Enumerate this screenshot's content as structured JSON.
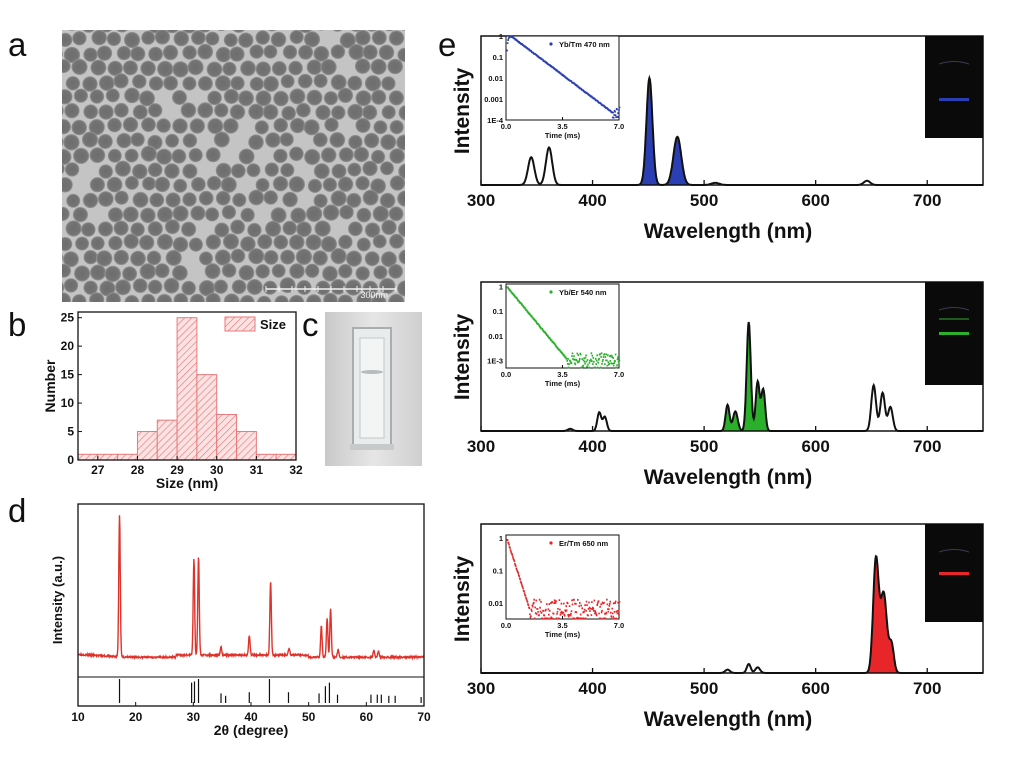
{
  "panels": {
    "a": {
      "label": "a",
      "scale_bar": "300nm"
    },
    "b": {
      "label": "b"
    },
    "c": {
      "label": "c"
    },
    "d": {
      "label": "d"
    },
    "e": {
      "label": "e"
    }
  },
  "colors": {
    "blue": "#2b3fb5",
    "green": "#2bb02b",
    "red": "#e8262a",
    "xrd": "#e0322a",
    "hist": "#e87878"
  },
  "chart_data": [
    {
      "id": "b",
      "type": "bar",
      "xlabel": "Size (nm)",
      "ylabel": "Number",
      "legend": "Size",
      "legend_position": "top-right",
      "bin_edges": [
        26.5,
        27,
        27.5,
        28,
        28.5,
        29,
        29.5,
        30,
        30.5,
        31,
        31.5,
        32
      ],
      "values": [
        1,
        1,
        1,
        5,
        7,
        25,
        15,
        8,
        5,
        1,
        1
      ],
      "xlim": [
        26.5,
        32
      ],
      "ylim": [
        0,
        26
      ],
      "xticks": [
        "27",
        "28",
        "29",
        "30",
        "31",
        "32"
      ],
      "xtick_values": [
        27,
        28,
        29,
        30,
        31,
        32
      ],
      "yticks": [
        "0",
        "5",
        "10",
        "15",
        "20",
        "25"
      ],
      "ytick_values": [
        0,
        5,
        10,
        15,
        20,
        25
      ]
    },
    {
      "id": "d",
      "type": "line",
      "xlabel": "2θ (degree)",
      "ylabel": "Intensity (a.u.)",
      "xlim": [
        10,
        70
      ],
      "xticks": [
        "10",
        "20",
        "30",
        "40",
        "50",
        "60",
        "70"
      ],
      "xtick_values": [
        10,
        20,
        30,
        40,
        50,
        60,
        70
      ],
      "baseline": 0.12,
      "peaks": [
        {
          "x": 17.2,
          "h": 1.0
        },
        {
          "x": 30.1,
          "h": 0.68
        },
        {
          "x": 30.9,
          "h": 0.69
        },
        {
          "x": 34.8,
          "h": 0.06
        },
        {
          "x": 39.7,
          "h": 0.14
        },
        {
          "x": 43.4,
          "h": 0.52
        },
        {
          "x": 46.6,
          "h": 0.05
        },
        {
          "x": 52.2,
          "h": 0.22
        },
        {
          "x": 53.2,
          "h": 0.27
        },
        {
          "x": 53.8,
          "h": 0.34
        },
        {
          "x": 55.1,
          "h": 0.05
        },
        {
          "x": 61.3,
          "h": 0.05
        },
        {
          "x": 62.1,
          "h": 0.04
        }
      ],
      "reference_lines": [
        {
          "x": 17.2,
          "h": 1.0
        },
        {
          "x": 29.7,
          "h": 0.85
        },
        {
          "x": 30.2,
          "h": 0.9
        },
        {
          "x": 30.9,
          "h": 1.0
        },
        {
          "x": 34.8,
          "h": 0.4
        },
        {
          "x": 35.6,
          "h": 0.3
        },
        {
          "x": 39.7,
          "h": 0.45
        },
        {
          "x": 43.2,
          "h": 1.0
        },
        {
          "x": 46.5,
          "h": 0.45
        },
        {
          "x": 51.8,
          "h": 0.4
        },
        {
          "x": 52.9,
          "h": 0.7
        },
        {
          "x": 53.6,
          "h": 0.85
        },
        {
          "x": 55.0,
          "h": 0.35
        },
        {
          "x": 60.8,
          "h": 0.35
        },
        {
          "x": 61.9,
          "h": 0.35
        },
        {
          "x": 62.6,
          "h": 0.35
        },
        {
          "x": 63.9,
          "h": 0.3
        },
        {
          "x": 65.0,
          "h": 0.3
        },
        {
          "x": 69.5,
          "h": 0.25
        }
      ]
    },
    {
      "id": "e1",
      "type": "area",
      "xlabel": "Wavelength (nm)",
      "ylabel": "Intensity",
      "xlim": [
        300,
        750
      ],
      "xticks": [
        "300",
        "400",
        "500",
        "600",
        "700"
      ],
      "xtick_values": [
        300,
        400,
        500,
        600,
        700
      ],
      "fill": "#2b3fb5",
      "fill_range": [
        440,
        500
      ],
      "peaks": [
        {
          "x": 345,
          "h": 0.26,
          "w": 4
        },
        {
          "x": 361,
          "h": 0.35,
          "w": 4
        },
        {
          "x": 451,
          "h": 1.0,
          "w": 3.8
        },
        {
          "x": 476,
          "h": 0.45,
          "w": 5
        },
        {
          "x": 510,
          "h": 0.02,
          "w": 5
        },
        {
          "x": 646,
          "h": 0.04,
          "w": 4
        }
      ],
      "inset": {
        "legend": "Yb/Tm 470 nm",
        "xlabel": "Time (ms)",
        "xticks": [
          "0.0",
          "3.5",
          "7.0"
        ],
        "yticks": [
          "1",
          "0.1",
          "0.01",
          "0.001",
          "1E-4"
        ],
        "ymin_log": -4,
        "ymax_log": 0,
        "tau": 0.75,
        "rise": 0.25,
        "color": "#2b3fb5"
      }
    },
    {
      "id": "e2",
      "type": "area",
      "xlabel": "Wavelength (nm)",
      "ylabel": "Intensity",
      "xlim": [
        300,
        750
      ],
      "xticks": [
        "300",
        "400",
        "500",
        "600",
        "700"
      ],
      "xtick_values": [
        300,
        400,
        500,
        600,
        700
      ],
      "fill": "#2bb02b",
      "fill_range": [
        510,
        560
      ],
      "peaks": [
        {
          "x": 380,
          "h": 0.02,
          "w": 3
        },
        {
          "x": 406,
          "h": 0.17,
          "w": 2.5
        },
        {
          "x": 411,
          "h": 0.13,
          "w": 2.5
        },
        {
          "x": 521,
          "h": 0.24,
          "w": 2.5
        },
        {
          "x": 528,
          "h": 0.18,
          "w": 3
        },
        {
          "x": 540,
          "h": 1.0,
          "w": 2.6
        },
        {
          "x": 548,
          "h": 0.45,
          "w": 2.5
        },
        {
          "x": 553,
          "h": 0.38,
          "w": 2.5
        },
        {
          "x": 652,
          "h": 0.42,
          "w": 3
        },
        {
          "x": 660,
          "h": 0.35,
          "w": 3
        },
        {
          "x": 667,
          "h": 0.22,
          "w": 3
        }
      ],
      "inset": {
        "legend": "Yb/Er 540 nm",
        "xlabel": "Time (ms)",
        "xticks": [
          "0.0",
          "3.5",
          "7.0"
        ],
        "yticks": [
          "1",
          "0.1",
          "0.01",
          "1E-3"
        ],
        "ymin_log": -3.3,
        "ymax_log": 0.1,
        "tau": 0.55,
        "rise": 0,
        "color": "#2bb02b"
      }
    },
    {
      "id": "e3",
      "type": "area",
      "xlabel": "Wavelength (nm)",
      "ylabel": "Intensity",
      "xlim": [
        300,
        750
      ],
      "xticks": [
        "300",
        "400",
        "500",
        "600",
        "700"
      ],
      "xtick_values": [
        300,
        400,
        500,
        600,
        700
      ],
      "fill": "#e8262a",
      "fill_range": [
        640,
        680
      ],
      "peaks": [
        {
          "x": 521,
          "h": 0.03,
          "w": 3
        },
        {
          "x": 540,
          "h": 0.08,
          "w": 2.5
        },
        {
          "x": 548,
          "h": 0.05,
          "w": 3
        },
        {
          "x": 654,
          "h": 1.0,
          "w": 3.5
        },
        {
          "x": 661,
          "h": 0.7,
          "w": 4
        },
        {
          "x": 668,
          "h": 0.25,
          "w": 3
        }
      ],
      "inset": {
        "legend": "Er/Tm 650 nm",
        "xlabel": "Time (ms)",
        "xticks": [
          "0.0",
          "3.5",
          "7.0"
        ],
        "yticks": [
          "1",
          "0.1",
          "0.01"
        ],
        "ymin_log": -2.5,
        "ymax_log": 0.1,
        "tau": 0.28,
        "rise": 0,
        "color": "#e8262a"
      }
    }
  ]
}
